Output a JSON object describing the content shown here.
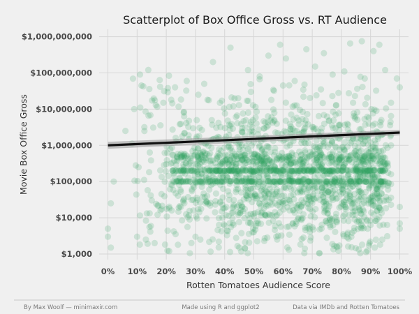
{
  "chart_data": {
    "type": "scatter",
    "title": "Scatterplot of Box Office Gross vs. RT Audience",
    "xlabel": "Rotten Tomatoes Audience Score",
    "ylabel": "Movie Box Office Gross",
    "x_scale": "linear",
    "y_scale": "log10",
    "xlim": [
      -0.03,
      1.03
    ],
    "ylim": [
      700,
      1600000000
    ],
    "x_ticks": [
      {
        "value": 0,
        "label": "0%"
      },
      {
        "value": 0.1,
        "label": "10%"
      },
      {
        "value": 0.2,
        "label": "20%"
      },
      {
        "value": 0.3,
        "label": "30%"
      },
      {
        "value": 0.4,
        "label": "40%"
      },
      {
        "value": 0.5,
        "label": "50%"
      },
      {
        "value": 0.6,
        "label": "60%"
      },
      {
        "value": 0.7,
        "label": "70%"
      },
      {
        "value": 0.8,
        "label": "80%"
      },
      {
        "value": 0.9,
        "label": "90%"
      },
      {
        "value": 1.0,
        "label": "100%"
      }
    ],
    "y_ticks": [
      {
        "value": 1000,
        "label": "$1,000"
      },
      {
        "value": 10000,
        "label": "$10,000"
      },
      {
        "value": 100000,
        "label": "$100,000"
      },
      {
        "value": 1000000,
        "label": "$1,000,000"
      },
      {
        "value": 10000000,
        "label": "$10,000,000"
      },
      {
        "value": 100000000,
        "label": "$100,000,000"
      },
      {
        "value": 1000000000,
        "label": "$1,000,000,000"
      }
    ],
    "grid": true,
    "point_color": "#2ca25f",
    "point_opacity": 0.18,
    "trend_line": {
      "type": "linear",
      "points": [
        [
          0,
          1000000
        ],
        [
          1,
          2250000
        ]
      ],
      "color": "#111111",
      "band_color": "#999999"
    },
    "points": [
      [
        0.42,
        500000000
      ],
      [
        0.55,
        300000000
      ],
      [
        0.61,
        250000000
      ],
      [
        0.68,
        450000000
      ],
      [
        0.74,
        350000000
      ],
      [
        0.83,
        650000000
      ],
      [
        0.87,
        750000000
      ],
      [
        0.91,
        400000000
      ],
      [
        0.93,
        600000000
      ],
      [
        0.59,
        600000000
      ],
      [
        0.36,
        200000000
      ],
      [
        0.48,
        120000000
      ],
      [
        0.52,
        80000000
      ],
      [
        0.64,
        60000000
      ],
      [
        0.71,
        150000000
      ],
      [
        0.77,
        90000000
      ],
      [
        0.81,
        110000000
      ],
      [
        0.88,
        70000000
      ],
      [
        0.33,
        50000000
      ],
      [
        0.27,
        60000000
      ],
      [
        0.23,
        40000000
      ],
      [
        0.19,
        15000000
      ],
      [
        0.11,
        90000000
      ],
      [
        0.09,
        10000000
      ],
      [
        0.06,
        2500000
      ],
      [
        0.02,
        100000
      ],
      [
        0.01,
        25000
      ],
      [
        0.0,
        5000
      ],
      [
        0.0,
        3000
      ],
      [
        0.01,
        1500
      ],
      [
        0.1,
        3000
      ],
      [
        0.13,
        2500
      ],
      [
        0.16,
        2000
      ],
      [
        0.21,
        1200
      ],
      [
        0.24,
        1800
      ],
      [
        0.3,
        3000
      ],
      [
        0.38,
        2200
      ],
      [
        0.45,
        1500
      ],
      [
        0.5,
        4000
      ],
      [
        0.58,
        2500
      ],
      [
        0.62,
        1300
      ],
      [
        0.69,
        6000
      ],
      [
        0.75,
        2800
      ],
      [
        0.82,
        3500
      ],
      [
        0.89,
        5000
      ],
      [
        0.94,
        2500
      ],
      [
        1.0,
        5000
      ],
      [
        1.0,
        7000
      ],
      [
        1.0,
        20000
      ],
      [
        0.99,
        70000000
      ],
      [
        1.0,
        40000000
      ],
      [
        0.97,
        15000000
      ],
      [
        0.95,
        120000000
      ],
      [
        0.35,
        600000
      ],
      [
        0.4,
        1500000
      ],
      [
        0.46,
        3000000
      ],
      [
        0.53,
        800000
      ],
      [
        0.57,
        5000000
      ],
      [
        0.63,
        2000000
      ],
      [
        0.66,
        400000
      ],
      [
        0.72,
        900000
      ],
      [
        0.78,
        7000000
      ],
      [
        0.85,
        300000
      ],
      [
        0.9,
        1200000
      ],
      [
        0.26,
        8000000
      ],
      [
        0.29,
        700000
      ],
      [
        0.31,
        25000000
      ],
      [
        0.43,
        12000000
      ],
      [
        0.49,
        30000000
      ],
      [
        0.56,
        18000000
      ],
      [
        0.6,
        45000000
      ],
      [
        0.67,
        22000000
      ],
      [
        0.73,
        35000000
      ],
      [
        0.79,
        28000000
      ],
      [
        0.84,
        15000000
      ],
      [
        0.92,
        9000000
      ],
      [
        0.2,
        300000
      ],
      [
        0.22,
        80000
      ],
      [
        0.25,
        20000
      ],
      [
        0.28,
        9000
      ],
      [
        0.34,
        40000
      ],
      [
        0.39,
        15000
      ],
      [
        0.44,
        60000
      ],
      [
        0.47,
        200000
      ],
      [
        0.51,
        35000
      ],
      [
        0.54,
        12000
      ],
      [
        0.65,
        50000
      ],
      [
        0.7,
        25000
      ],
      [
        0.76,
        10000
      ],
      [
        0.8,
        45000
      ],
      [
        0.86,
        18000
      ],
      [
        0.91,
        30000
      ],
      [
        0.96,
        60000
      ],
      [
        0.37,
        200000
      ],
      [
        0.41,
        200000
      ],
      [
        0.5,
        200000
      ],
      [
        0.6,
        200000
      ],
      [
        0.7,
        200000
      ],
      [
        0.8,
        200000
      ],
      [
        0.9,
        200000
      ],
      [
        0.3,
        100000
      ],
      [
        0.45,
        100000
      ],
      [
        0.55,
        100000
      ],
      [
        0.65,
        100000
      ],
      [
        0.75,
        100000
      ],
      [
        0.85,
        100000
      ],
      [
        0.95,
        100000
      ]
    ]
  },
  "footer": {
    "left": "By Max Woolf — minimaxir.com",
    "center": "Made using R and ggplot2",
    "right": "Data via IMDb and Rotten Tomatoes"
  }
}
